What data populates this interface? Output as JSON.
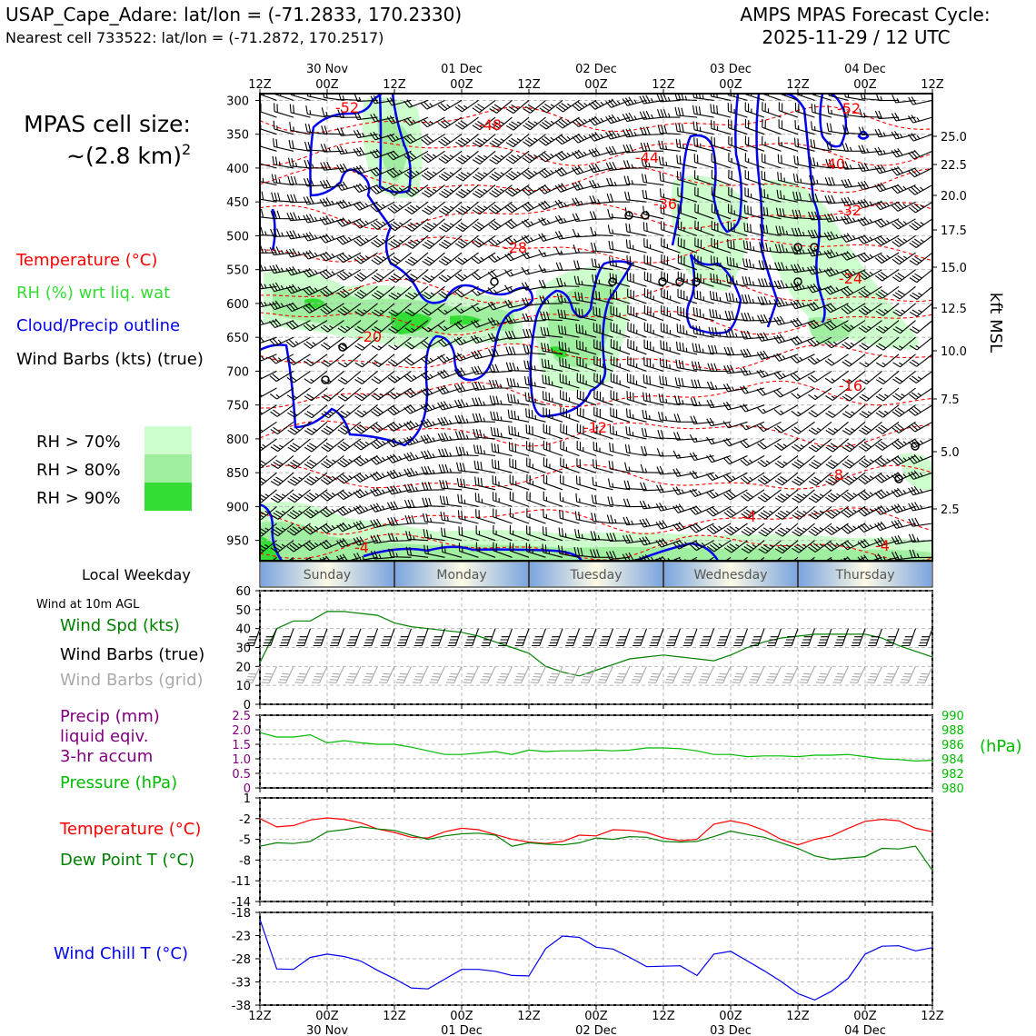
{
  "header": {
    "station_line": "USAP_Cape_Adare: lat/lon = (-71.2833, 170.2330)",
    "cell_line": "Nearest cell 733522: lat/lon = (-71.2872, 170.2517)",
    "cycle_title": "AMPS MPAS Forecast Cycle:",
    "cycle_time": "2025-11-29 / 12 UTC"
  },
  "left_panel": {
    "cell_size_label": "MPAS cell size:",
    "cell_size_value": "~(2.8 km)",
    "cell_size_exp": "2",
    "legend_temperature": "Temperature (°C)",
    "legend_rh": "RH (%) wrt liq. wat",
    "legend_cloud": "Cloud/Precip outline",
    "legend_wind": "Wind Barbs (kts) (true)",
    "rh_levels": [
      "RH > 70%",
      "RH > 80%",
      "RH > 90%"
    ],
    "local_weekday_label": "Local Weekday",
    "wind10m_label": "Wind at 10m AGL",
    "wind_spd_label": "Wind Spd (kts)",
    "wind_barbs_true_label": "Wind Barbs (true)",
    "wind_barbs_grid_label": "Wind Barbs (grid)",
    "precip_label_1": "Precip (mm)",
    "precip_label_2": "liquid eqiv.",
    "precip_label_3": "3-hr accum",
    "pressure_label": "Pressure (hPa)",
    "temp_label": "Temperature (°C)",
    "dew_label": "Dew Point T (°C)",
    "windchill_label": "Wind Chill T (°C)"
  },
  "colors": {
    "temperature": "#ff0000",
    "rh": "#33dd33",
    "cloud": "#0000ee",
    "wind": "#000000",
    "wind_grid": "#aaaaaa",
    "precip": "#800080",
    "pressure": "#00bb00",
    "dewpoint": "#008000",
    "windchill": "#0000ee",
    "rh70": "#ccffcc",
    "rh80": "#a0eea0",
    "rh90": "#33dd33"
  },
  "chart_data": [
    {
      "type": "cross-section",
      "x_ticks": [
        "12Z",
        "00Z",
        "12Z",
        "00Z",
        "12Z",
        "00Z",
        "12Z",
        "00Z",
        "12Z",
        "00Z",
        "12Z"
      ],
      "date_labels": [
        "30 Nov",
        "01 Dec",
        "02 Dec",
        "03 Dec",
        "04 Dec"
      ],
      "ylabel_left": "",
      "y_ticks_hpa": [
        300,
        350,
        400,
        450,
        500,
        550,
        600,
        650,
        700,
        750,
        800,
        850,
        900,
        950
      ],
      "ylabel_right": "kft MSL",
      "y_ticks_kft": [
        "25.0",
        "22.5",
        "20.0",
        "17.5",
        "15.0",
        "12.5",
        "10.0",
        "7.5",
        "5.0",
        "2.5"
      ],
      "temperature_contour_labels": [
        "-52",
        "-48",
        "-44",
        "-40",
        "-36",
        "-32",
        "-28",
        "-24",
        "-20",
        "-16",
        "-12",
        "-8",
        "-4",
        "-4",
        "-4",
        "-52"
      ]
    },
    {
      "type": "band",
      "weekdays": [
        "Sunday",
        "Monday",
        "Tuesday",
        "Wednesday",
        "Thursday"
      ]
    },
    {
      "type": "line",
      "name": "wind10m",
      "ylim": [
        0,
        60
      ],
      "y_ticks": [
        "0",
        "10",
        "20",
        "30",
        "40",
        "50",
        "60"
      ],
      "x_hours": [
        0,
        3,
        6,
        9,
        12,
        15,
        18,
        21,
        24,
        27,
        30,
        33,
        36,
        39,
        42,
        45,
        48,
        51,
        54,
        57,
        60,
        63,
        66,
        69,
        72,
        75,
        78,
        81,
        84,
        87,
        90,
        93,
        96,
        99,
        102,
        105,
        108,
        111,
        114,
        117,
        120
      ],
      "wind_speed_kts": [
        22,
        40,
        44,
        44,
        49,
        49,
        48,
        47,
        43,
        41,
        40,
        39,
        38,
        36,
        33,
        30,
        27,
        20,
        17,
        15,
        18,
        21,
        24,
        25,
        26,
        25,
        24,
        23,
        26,
        30,
        33,
        35,
        36,
        37,
        37,
        37,
        37,
        35,
        31,
        28,
        25
      ],
      "barbs_true_kts": 40,
      "barbs_grid_kts": 20
    },
    {
      "type": "line",
      "name": "precip_pressure",
      "precip_ylim": [
        0,
        2.5
      ],
      "precip_ticks": [
        "0",
        "0.5",
        "1.0",
        "1.5",
        "2.0",
        "2.5"
      ],
      "pressure_ylim": [
        980,
        990
      ],
      "pressure_ticks": [
        "980",
        "982",
        "984",
        "986",
        "988",
        "990"
      ],
      "pressure_unit": "(hPa)",
      "x_hours": [
        0,
        3,
        6,
        9,
        12,
        15,
        18,
        21,
        24,
        27,
        30,
        33,
        36,
        39,
        42,
        45,
        48,
        51,
        54,
        57,
        60,
        63,
        66,
        69,
        72,
        75,
        78,
        81,
        84,
        87,
        90,
        93,
        96,
        99,
        102,
        105,
        108,
        111,
        114,
        117,
        120
      ],
      "pressure_hpa": [
        987.6,
        987.0,
        987.0,
        987.3,
        986.2,
        986.5,
        986.2,
        986.0,
        986.0,
        985.6,
        985.1,
        984.6,
        984.6,
        984.8,
        985.0,
        984.6,
        985.2,
        985.0,
        985.1,
        985.1,
        985.2,
        985.1,
        985.2,
        985.5,
        985.5,
        985.4,
        985.1,
        984.6,
        984.6,
        984.3,
        984.4,
        984.4,
        984.3,
        984.5,
        984.5,
        984.6,
        984.3,
        984.0,
        983.9,
        983.7,
        983.8
      ]
    },
    {
      "type": "line",
      "name": "temperature_dewpoint",
      "ylim": [
        -14,
        1
      ],
      "y_ticks": [
        "1",
        "-2",
        "-5",
        "-8",
        "-11",
        "-14"
      ],
      "x_hours": [
        0,
        3,
        6,
        9,
        12,
        15,
        18,
        21,
        24,
        27,
        30,
        33,
        36,
        39,
        42,
        45,
        48,
        51,
        54,
        57,
        60,
        63,
        66,
        69,
        72,
        75,
        78,
        81,
        84,
        87,
        90,
        93,
        96,
        99,
        102,
        105,
        108,
        111,
        114,
        117,
        120
      ],
      "temperature_c": [
        -2.0,
        -3.2,
        -3.0,
        -2.2,
        -1.9,
        -2.1,
        -2.6,
        -3.5,
        -4.0,
        -4.7,
        -4.8,
        -3.9,
        -3.4,
        -3.6,
        -4.3,
        -5.0,
        -5.4,
        -5.6,
        -5.3,
        -4.4,
        -4.5,
        -3.6,
        -3.7,
        -4.0,
        -4.8,
        -5.2,
        -5.0,
        -2.8,
        -2.3,
        -2.8,
        -3.7,
        -5.0,
        -5.8,
        -5.0,
        -4.5,
        -3.4,
        -2.4,
        -2.1,
        -2.3,
        -3.4,
        -3.9
      ],
      "dewpoint_c": [
        -6.0,
        -5.5,
        -5.6,
        -5.3,
        -3.9,
        -3.6,
        -3.2,
        -3.5,
        -3.7,
        -4.4,
        -5.0,
        -4.5,
        -4.2,
        -4.1,
        -4.4,
        -6.0,
        -5.5,
        -5.7,
        -5.8,
        -5.5,
        -4.8,
        -5.0,
        -4.6,
        -4.7,
        -5.3,
        -5.4,
        -5.3,
        -4.6,
        -3.8,
        -4.3,
        -4.7,
        -5.5,
        -6.3,
        -7.4,
        -7.9,
        -7.7,
        -7.5,
        -6.3,
        -6.4,
        -6.0,
        -9.5
      ]
    },
    {
      "type": "line",
      "name": "windchill",
      "ylim": [
        -38,
        -18
      ],
      "y_ticks": [
        "-18",
        "-23",
        "-28",
        "-33",
        "-38"
      ],
      "x_hours": [
        0,
        3,
        6,
        9,
        12,
        15,
        18,
        21,
        24,
        27,
        30,
        33,
        36,
        39,
        42,
        45,
        48,
        51,
        54,
        57,
        60,
        63,
        66,
        69,
        72,
        75,
        78,
        81,
        84,
        87,
        90,
        93,
        96,
        99,
        102,
        105,
        108,
        111,
        114,
        117,
        120
      ],
      "windchill_c": [
        -19.5,
        -30.2,
        -30.3,
        -27.7,
        -27.0,
        -27.5,
        -28.5,
        -30.5,
        -32.3,
        -34.3,
        -34.5,
        -32.4,
        -30.3,
        -30.3,
        -30.7,
        -31.6,
        -31.7,
        -25.8,
        -23.1,
        -23.4,
        -25.5,
        -25.9,
        -27.7,
        -29.7,
        -29.6,
        -29.5,
        -31.6,
        -27.0,
        -26.4,
        -28.5,
        -30.6,
        -32.9,
        -35.5,
        -36.9,
        -35.0,
        -32.2,
        -27.0,
        -25.3,
        -25.2,
        -26.3,
        -25.6
      ]
    }
  ]
}
